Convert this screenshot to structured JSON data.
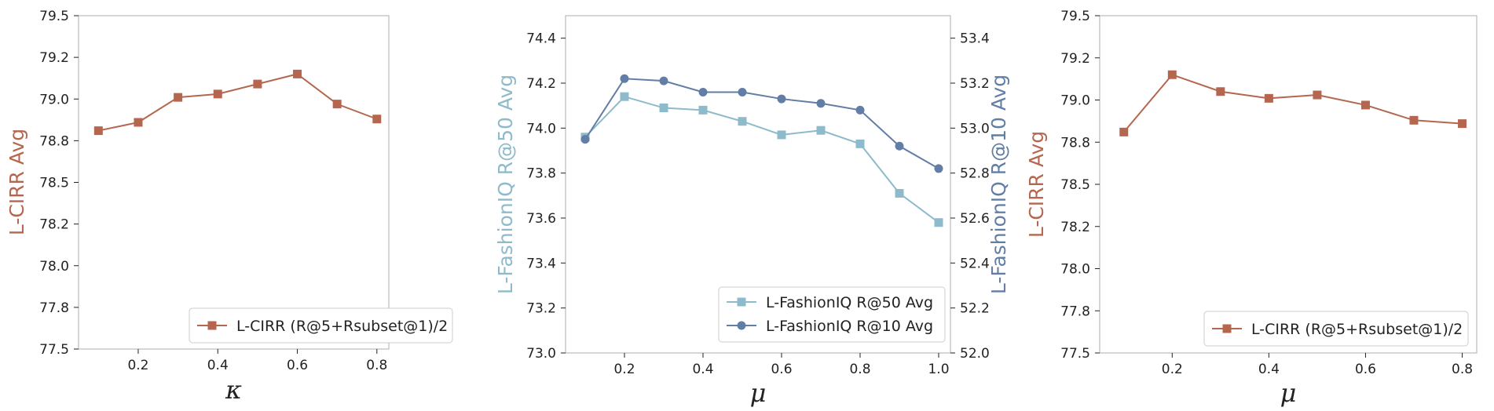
{
  "colors": {
    "cirr": "#b5664f",
    "r50": "#8dbbcc",
    "r10": "#627ea6",
    "frame": "#bbbbbb",
    "text": "#222222",
    "legend_border": "#cccccc"
  },
  "chart_data": [
    {
      "type": "line",
      "xlabel": "κ",
      "ylabel": "L-CIRR Avg",
      "xlim": [
        0.05,
        0.83
      ],
      "ylim": [
        77.5,
        79.5
      ],
      "xticks": [
        0.2,
        0.4,
        0.6,
        0.8
      ],
      "xtick_labels": [
        "0.2",
        "0.4",
        "0.6",
        "0.8"
      ],
      "yticks": [
        77.5,
        77.75,
        78.0,
        78.25,
        78.5,
        78.75,
        79.0,
        79.25,
        79.5
      ],
      "ytick_labels": [
        "77.5",
        "77.8",
        "78.0",
        "78.2",
        "78.5",
        "78.8",
        "79.0",
        "79.2",
        "79.5"
      ],
      "legend_position": "bottom-right",
      "grid": false,
      "series": [
        {
          "name": "L-CIRR (R@5+Rsubset@1)/2",
          "marker": "square",
          "color_key": "cirr",
          "axis": "left",
          "x": [
            0.1,
            0.2,
            0.3,
            0.4,
            0.5,
            0.6,
            0.7,
            0.8
          ],
          "y": [
            78.81,
            78.86,
            79.01,
            79.03,
            79.09,
            79.15,
            78.97,
            78.88
          ]
        }
      ]
    },
    {
      "type": "line",
      "xlabel": "μ",
      "ylabel": "L-FashionIQ R@50 Avg",
      "ylabel_right": "L-FashionIQ R@10 Avg",
      "xlim": [
        0.05,
        1.03
      ],
      "ylim": [
        73.0,
        74.5
      ],
      "ylim_right": [
        52.0,
        53.5
      ],
      "xticks": [
        0.2,
        0.4,
        0.6,
        0.8,
        1.0
      ],
      "xtick_labels": [
        "0.2",
        "0.4",
        "0.6",
        "0.8",
        "1.0"
      ],
      "yticks": [
        73.0,
        73.2,
        73.4,
        73.6,
        73.8,
        74.0,
        74.2,
        74.4
      ],
      "ytick_labels": [
        "73.0",
        "73.2",
        "73.4",
        "73.6",
        "73.8",
        "74.0",
        "74.2",
        "74.4"
      ],
      "yticks_right": [
        52.0,
        52.2,
        52.4,
        52.6,
        52.8,
        53.0,
        53.2,
        53.4
      ],
      "ytick_labels_right": [
        "52.0",
        "52.2",
        "52.4",
        "52.6",
        "52.8",
        "53.0",
        "53.2",
        "53.4"
      ],
      "legend_position": "bottom-right",
      "grid": false,
      "series": [
        {
          "name": "L-FashionIQ R@50 Avg",
          "marker": "square",
          "color_key": "r50",
          "axis": "left",
          "x": [
            0.1,
            0.2,
            0.3,
            0.4,
            0.5,
            0.6,
            0.7,
            0.8,
            0.9,
            1.0
          ],
          "y": [
            73.96,
            74.14,
            74.09,
            74.08,
            74.03,
            73.97,
            73.99,
            73.93,
            73.71,
            73.58
          ]
        },
        {
          "name": "L-FashionIQ R@10 Avg",
          "marker": "circle",
          "color_key": "r10",
          "axis": "right",
          "x": [
            0.1,
            0.2,
            0.3,
            0.4,
            0.5,
            0.6,
            0.7,
            0.8,
            0.9,
            1.0
          ],
          "y": [
            52.95,
            53.22,
            53.21,
            53.16,
            53.16,
            53.13,
            53.11,
            53.08,
            52.92,
            52.82
          ]
        }
      ]
    },
    {
      "type": "line",
      "xlabel": "μ",
      "ylabel": "L-CIRR Avg",
      "xlim": [
        0.05,
        0.83
      ],
      "ylim": [
        77.5,
        79.5
      ],
      "xticks": [
        0.2,
        0.4,
        0.6,
        0.8
      ],
      "xtick_labels": [
        "0.2",
        "0.4",
        "0.6",
        "0.8"
      ],
      "yticks": [
        77.5,
        77.75,
        78.0,
        78.25,
        78.5,
        78.75,
        79.0,
        79.25,
        79.5
      ],
      "ytick_labels": [
        "77.5",
        "77.8",
        "78.0",
        "78.2",
        "78.5",
        "78.8",
        "79.0",
        "79.2",
        "79.5"
      ],
      "legend_position": "bottom-right",
      "grid": false,
      "series": [
        {
          "name": "L-CIRR (R@5+Rsubset@1)/2",
          "marker": "square",
          "color_key": "cirr",
          "axis": "left",
          "x": [
            0.1,
            0.2,
            0.3,
            0.4,
            0.5,
            0.6,
            0.7,
            0.8
          ],
          "y": [
            78.81,
            79.15,
            79.05,
            79.01,
            79.03,
            78.97,
            78.88,
            78.86
          ]
        }
      ]
    }
  ]
}
